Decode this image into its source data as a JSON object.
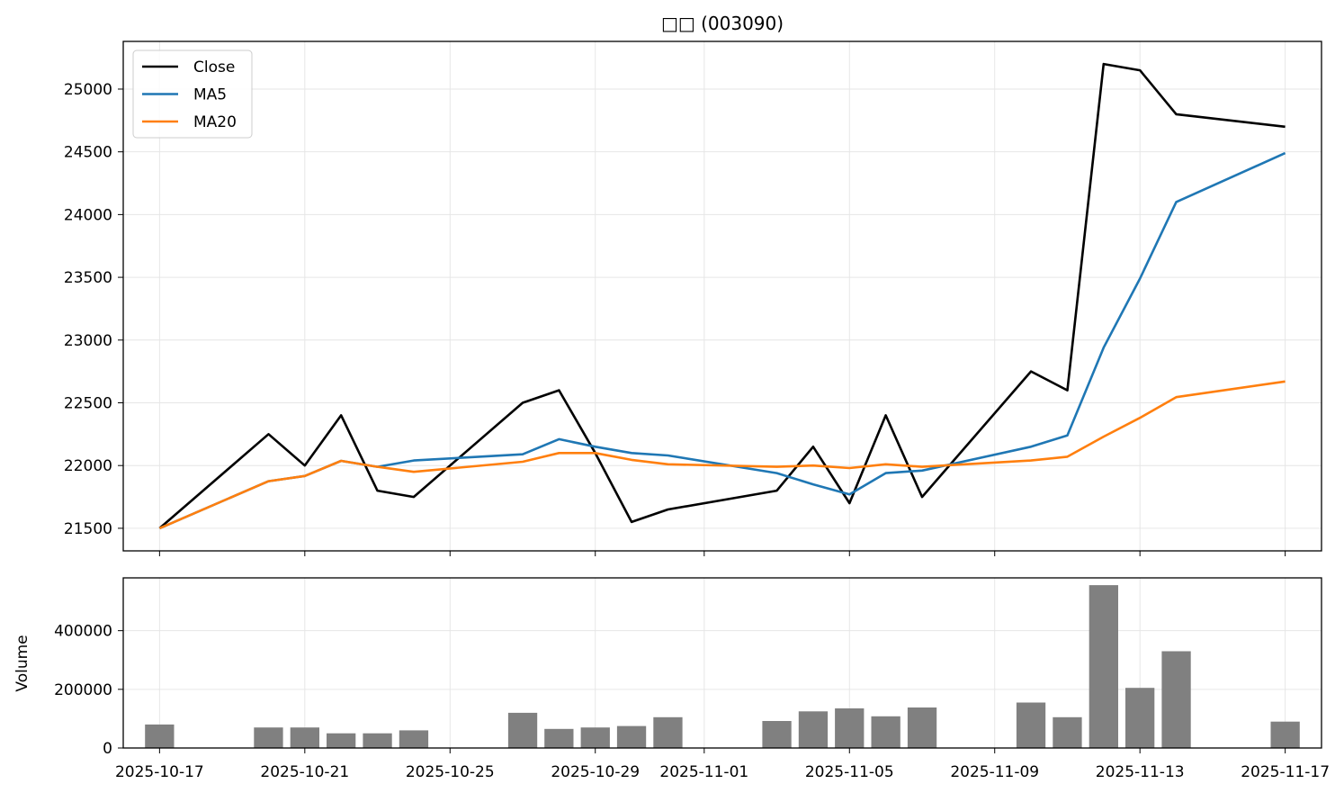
{
  "chart_data": [
    {
      "type": "line",
      "title": "□□ (003090)",
      "xlabel": "",
      "ylabel": "",
      "ylim": [
        21320,
        25380
      ],
      "yticks": [
        21500,
        22000,
        22500,
        23000,
        23500,
        24000,
        24500,
        25000
      ],
      "xlim": [
        "2025-10-16",
        "2025-11-18"
      ],
      "xticks": [
        "2025-10-17",
        "2025-10-21",
        "2025-10-25",
        "2025-10-29",
        "2025-11-01",
        "2025-11-05",
        "2025-11-09",
        "2025-11-13",
        "2025-11-17"
      ],
      "grid": true,
      "legend": "top-left",
      "x": [
        "2025-10-17",
        "2025-10-20",
        "2025-10-21",
        "2025-10-22",
        "2025-10-23",
        "2025-10-24",
        "2025-10-27",
        "2025-10-28",
        "2025-10-29",
        "2025-10-30",
        "2025-10-31",
        "2025-11-03",
        "2025-11-04",
        "2025-11-05",
        "2025-11-06",
        "2025-11-07",
        "2025-11-10",
        "2025-11-11",
        "2025-11-12",
        "2025-11-13",
        "2025-11-14",
        "2025-11-17"
      ],
      "series": [
        {
          "name": "Close",
          "color": "#000000",
          "values": [
            21500,
            22250,
            22000,
            22400,
            21800,
            21750,
            22500,
            22600,
            22100,
            21550,
            21650,
            21800,
            22150,
            21700,
            22400,
            21750,
            22750,
            22600,
            25200,
            25150,
            24800,
            24700
          ]
        },
        {
          "name": "MA5",
          "color": "#1f77b4",
          "values": [
            21500,
            21875,
            21917,
            22037,
            21990,
            22040,
            22090,
            22210,
            22150,
            22100,
            22080,
            21940,
            21850,
            21770,
            21940,
            21960,
            22150,
            22240,
            22940,
            23490,
            24100,
            24490
          ]
        },
        {
          "name": "MA20",
          "color": "#ff7f0e",
          "values": [
            21500,
            21875,
            21917,
            22037,
            21990,
            21950,
            22030,
            22100,
            22100,
            22045,
            22010,
            21990,
            22000,
            21980,
            22010,
            21990,
            22040,
            22070,
            22230,
            22380,
            22545,
            22670
          ]
        }
      ]
    },
    {
      "type": "bar",
      "title": "",
      "xlabel": "",
      "ylabel": "Volume",
      "ylim": [
        0,
        580000
      ],
      "yticks": [
        0,
        200000,
        400000
      ],
      "grid": true,
      "color": "#808080",
      "x": [
        "2025-10-17",
        "2025-10-20",
        "2025-10-21",
        "2025-10-22",
        "2025-10-23",
        "2025-10-24",
        "2025-10-27",
        "2025-10-28",
        "2025-10-29",
        "2025-10-30",
        "2025-10-31",
        "2025-11-03",
        "2025-11-04",
        "2025-11-05",
        "2025-11-06",
        "2025-11-07",
        "2025-11-10",
        "2025-11-11",
        "2025-11-12",
        "2025-11-13",
        "2025-11-14",
        "2025-11-17"
      ],
      "values": [
        80000,
        70000,
        70000,
        50000,
        50000,
        60000,
        120000,
        65000,
        70000,
        75000,
        105000,
        92000,
        125000,
        135000,
        108000,
        138000,
        155000,
        105000,
        555000,
        205000,
        330000,
        90000
      ]
    }
  ]
}
